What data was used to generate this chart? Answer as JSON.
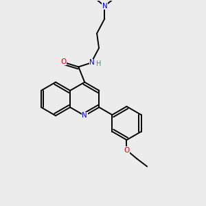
{
  "background_color": "#ececec",
  "atom_colors": {
    "C": "#000000",
    "N": "#0000dd",
    "O": "#dd0000",
    "H": "#3a8a8a"
  },
  "figsize": [
    3.0,
    3.0
  ],
  "dpi": 100
}
